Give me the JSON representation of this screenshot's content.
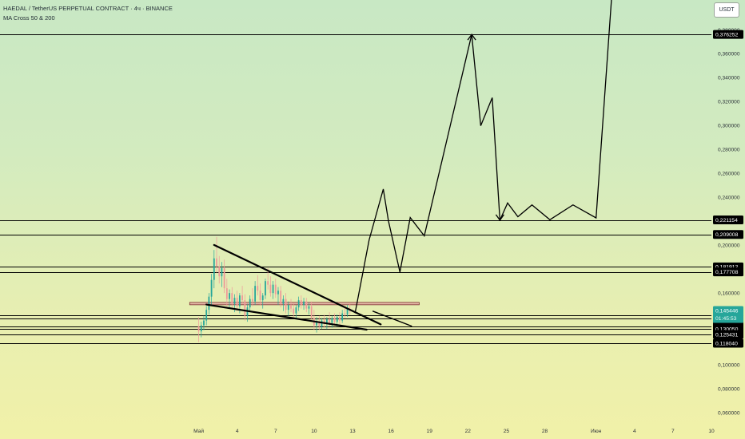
{
  "header": {
    "title": "HAEDAL / TetherUS PERPETUAL CONTRACT · 4ч · BINANCE",
    "indicator": "MA Cross 50 & 200",
    "currency": "USDT"
  },
  "colors": {
    "line": "#000000",
    "candle_up": "#26a69a",
    "candle_down": "#ef9a9a",
    "price_tag_bg": "#000000",
    "last_price_bg": "#26a69a",
    "countdown_bg": "#7fc6b8",
    "red_line": "#7b3030"
  },
  "chart_data": {
    "type": "line",
    "title": "HAEDAL / TetherUS PERPETUAL CONTRACT · 4ч · BINANCE",
    "xlabel": "",
    "ylabel": "",
    "x_unit": "days from 1 May 2025",
    "ylim": [
      0.05,
      0.405
    ],
    "xlim": [
      -15.5,
      40.0
    ],
    "x_ticks": [
      {
        "label": "Май",
        "x": 0
      },
      {
        "label": "4",
        "x": 3
      },
      {
        "label": "7",
        "x": 6
      },
      {
        "label": "10",
        "x": 9
      },
      {
        "label": "13",
        "x": 12
      },
      {
        "label": "16",
        "x": 15
      },
      {
        "label": "19",
        "x": 18
      },
      {
        "label": "22",
        "x": 21
      },
      {
        "label": "25",
        "x": 24
      },
      {
        "label": "28",
        "x": 27
      },
      {
        "label": "Июн",
        "x": 31
      },
      {
        "label": "4",
        "x": 34
      },
      {
        "label": "7",
        "x": 37
      },
      {
        "label": "10",
        "x": 40
      }
    ],
    "y_ticks": [
      0.06,
      0.08,
      0.1,
      0.12,
      0.14,
      0.16,
      0.18,
      0.2,
      0.22,
      0.24,
      0.26,
      0.28,
      0.3,
      0.32,
      0.34,
      0.36,
      0.38
    ],
    "y_tick_labels": [
      "0,060000",
      "0,080000",
      "0,100000",
      "0,120000",
      "0,140000",
      "0,160000",
      "0,180000",
      "0,200000",
      "0,220000",
      "0,240000",
      "0,260000",
      "0,280000",
      "0,300000",
      "0,320000",
      "0,340000",
      "0,360000",
      "0,380000"
    ],
    "levels": [
      {
        "value": 0.376252,
        "label": "0,376252"
      },
      {
        "value": 0.221154,
        "label": "0,221154"
      },
      {
        "value": 0.209008,
        "label": "0,209008"
      },
      {
        "value": 0.181912,
        "label": "0,181912"
      },
      {
        "value": 0.177708,
        "label": "0,177708"
      },
      {
        "value": 0.14113,
        "label": "0,141130"
      },
      {
        "value": 0.138667,
        "label": "0,138667"
      },
      {
        "value": 0.131898,
        "label": "0,131898"
      },
      {
        "value": 0.13005,
        "label": "0,130050"
      },
      {
        "value": 0.125431,
        "label": "0,125431"
      },
      {
        "value": 0.11804,
        "label": "0,118040"
      }
    ],
    "last_price": {
      "value": 0.145446,
      "label": "0,145446",
      "countdown": "01:45:53"
    },
    "red_level": {
      "value": 0.1512,
      "x_start": -0.7,
      "x_end": 17.2
    },
    "trendlines": [
      {
        "name": "upper-wedge",
        "points": [
          [
            1.2,
            0.2002
          ],
          [
            14.2,
            0.1338
          ]
        ]
      },
      {
        "name": "lower-wedge",
        "points": [
          [
            0.6,
            0.1504
          ],
          [
            13.1,
            0.1294
          ]
        ]
      },
      {
        "name": "breakout-upper",
        "points": [
          [
            13.6,
            0.1448
          ],
          [
            16.6,
            0.1324
          ]
        ]
      }
    ],
    "projection": [
      [
        12.2,
        0.1432
      ],
      [
        13.3,
        0.2045
      ],
      [
        14.4,
        0.2469
      ],
      [
        14.8,
        0.2205
      ],
      [
        15.7,
        0.1775
      ],
      [
        16.5,
        0.2231
      ],
      [
        17.6,
        0.2078
      ],
      [
        21.3,
        0.3762
      ],
      [
        22.0,
        0.2999
      ],
      [
        22.9,
        0.3233
      ],
      [
        23.5,
        0.2209
      ],
      [
        24.1,
        0.2353
      ],
      [
        24.9,
        0.2238
      ],
      [
        26.0,
        0.2337
      ],
      [
        27.4,
        0.2213
      ],
      [
        29.2,
        0.2337
      ],
      [
        31.0,
        0.2228
      ],
      [
        32.2,
        0.405
      ]
    ],
    "candles": [
      {
        "x": 0.0,
        "o": 0.132,
        "h": 0.14,
        "l": 0.119,
        "c": 0.128
      },
      {
        "x": 0.2,
        "o": 0.128,
        "h": 0.136,
        "l": 0.123,
        "c": 0.133
      },
      {
        "x": 0.4,
        "o": 0.133,
        "h": 0.141,
        "l": 0.129,
        "c": 0.137
      },
      {
        "x": 0.6,
        "o": 0.137,
        "h": 0.149,
        "l": 0.133,
        "c": 0.146
      },
      {
        "x": 0.8,
        "o": 0.146,
        "h": 0.16,
        "l": 0.142,
        "c": 0.157
      },
      {
        "x": 1.0,
        "o": 0.157,
        "h": 0.176,
        "l": 0.15,
        "c": 0.171
      },
      {
        "x": 1.2,
        "o": 0.171,
        "h": 0.196,
        "l": 0.164,
        "c": 0.189
      },
      {
        "x": 1.4,
        "o": 0.189,
        "h": 0.207,
        "l": 0.177,
        "c": 0.182
      },
      {
        "x": 1.6,
        "o": 0.182,
        "h": 0.191,
        "l": 0.168,
        "c": 0.174
      },
      {
        "x": 1.8,
        "o": 0.174,
        "h": 0.186,
        "l": 0.165,
        "c": 0.181
      },
      {
        "x": 2.0,
        "o": 0.181,
        "h": 0.188,
        "l": 0.16,
        "c": 0.164
      },
      {
        "x": 2.2,
        "o": 0.164,
        "h": 0.172,
        "l": 0.149,
        "c": 0.155
      },
      {
        "x": 2.4,
        "o": 0.155,
        "h": 0.163,
        "l": 0.147,
        "c": 0.16
      },
      {
        "x": 2.6,
        "o": 0.16,
        "h": 0.165,
        "l": 0.148,
        "c": 0.151
      },
      {
        "x": 2.8,
        "o": 0.151,
        "h": 0.159,
        "l": 0.144,
        "c": 0.156
      },
      {
        "x": 3.0,
        "o": 0.156,
        "h": 0.162,
        "l": 0.146,
        "c": 0.149
      },
      {
        "x": 3.2,
        "o": 0.149,
        "h": 0.16,
        "l": 0.143,
        "c": 0.158
      },
      {
        "x": 3.4,
        "o": 0.158,
        "h": 0.166,
        "l": 0.151,
        "c": 0.154
      },
      {
        "x": 3.6,
        "o": 0.154,
        "h": 0.159,
        "l": 0.137,
        "c": 0.141
      },
      {
        "x": 3.8,
        "o": 0.141,
        "h": 0.151,
        "l": 0.136,
        "c": 0.148
      },
      {
        "x": 4.0,
        "o": 0.148,
        "h": 0.158,
        "l": 0.144,
        "c": 0.155
      },
      {
        "x": 4.2,
        "o": 0.155,
        "h": 0.164,
        "l": 0.149,
        "c": 0.153
      },
      {
        "x": 4.4,
        "o": 0.153,
        "h": 0.17,
        "l": 0.15,
        "c": 0.166
      },
      {
        "x": 4.6,
        "o": 0.166,
        "h": 0.175,
        "l": 0.158,
        "c": 0.162
      },
      {
        "x": 4.8,
        "o": 0.162,
        "h": 0.168,
        "l": 0.15,
        "c": 0.154
      },
      {
        "x": 5.0,
        "o": 0.154,
        "h": 0.16,
        "l": 0.147,
        "c": 0.158
      },
      {
        "x": 5.2,
        "o": 0.158,
        "h": 0.172,
        "l": 0.155,
        "c": 0.17
      },
      {
        "x": 5.4,
        "o": 0.17,
        "h": 0.181,
        "l": 0.163,
        "c": 0.167
      },
      {
        "x": 5.6,
        "o": 0.167,
        "h": 0.174,
        "l": 0.157,
        "c": 0.16
      },
      {
        "x": 5.8,
        "o": 0.16,
        "h": 0.17,
        "l": 0.155,
        "c": 0.167
      },
      {
        "x": 6.0,
        "o": 0.167,
        "h": 0.172,
        "l": 0.156,
        "c": 0.159
      },
      {
        "x": 6.2,
        "o": 0.159,
        "h": 0.165,
        "l": 0.15,
        "c": 0.162
      },
      {
        "x": 6.4,
        "o": 0.162,
        "h": 0.166,
        "l": 0.148,
        "c": 0.151
      },
      {
        "x": 6.6,
        "o": 0.151,
        "h": 0.158,
        "l": 0.145,
        "c": 0.155
      },
      {
        "x": 6.8,
        "o": 0.155,
        "h": 0.16,
        "l": 0.143,
        "c": 0.146
      },
      {
        "x": 7.0,
        "o": 0.146,
        "h": 0.153,
        "l": 0.141,
        "c": 0.15
      },
      {
        "x": 7.2,
        "o": 0.15,
        "h": 0.155,
        "l": 0.144,
        "c": 0.147
      },
      {
        "x": 7.4,
        "o": 0.147,
        "h": 0.152,
        "l": 0.14,
        "c": 0.143
      },
      {
        "x": 7.6,
        "o": 0.143,
        "h": 0.15,
        "l": 0.139,
        "c": 0.148
      },
      {
        "x": 7.8,
        "o": 0.148,
        "h": 0.157,
        "l": 0.145,
        "c": 0.154
      },
      {
        "x": 8.0,
        "o": 0.154,
        "h": 0.158,
        "l": 0.147,
        "c": 0.15
      },
      {
        "x": 8.2,
        "o": 0.15,
        "h": 0.156,
        "l": 0.146,
        "c": 0.153
      },
      {
        "x": 8.4,
        "o": 0.153,
        "h": 0.156,
        "l": 0.144,
        "c": 0.147
      },
      {
        "x": 8.6,
        "o": 0.147,
        "h": 0.152,
        "l": 0.142,
        "c": 0.149
      },
      {
        "x": 8.8,
        "o": 0.149,
        "h": 0.153,
        "l": 0.136,
        "c": 0.139
      },
      {
        "x": 9.0,
        "o": 0.139,
        "h": 0.146,
        "l": 0.129,
        "c": 0.133
      },
      {
        "x": 9.2,
        "o": 0.133,
        "h": 0.14,
        "l": 0.127,
        "c": 0.136
      },
      {
        "x": 9.4,
        "o": 0.136,
        "h": 0.141,
        "l": 0.129,
        "c": 0.132
      },
      {
        "x": 9.6,
        "o": 0.132,
        "h": 0.139,
        "l": 0.13,
        "c": 0.137
      },
      {
        "x": 9.8,
        "o": 0.137,
        "h": 0.142,
        "l": 0.131,
        "c": 0.134
      },
      {
        "x": 10.0,
        "o": 0.134,
        "h": 0.14,
        "l": 0.13,
        "c": 0.138
      },
      {
        "x": 10.2,
        "o": 0.138,
        "h": 0.144,
        "l": 0.132,
        "c": 0.135
      },
      {
        "x": 10.4,
        "o": 0.135,
        "h": 0.141,
        "l": 0.131,
        "c": 0.139
      },
      {
        "x": 10.6,
        "o": 0.139,
        "h": 0.143,
        "l": 0.133,
        "c": 0.136
      },
      {
        "x": 10.8,
        "o": 0.136,
        "h": 0.142,
        "l": 0.132,
        "c": 0.14
      },
      {
        "x": 11.0,
        "o": 0.14,
        "h": 0.144,
        "l": 0.134,
        "c": 0.137
      },
      {
        "x": 11.2,
        "o": 0.137,
        "h": 0.146,
        "l": 0.135,
        "c": 0.143
      },
      {
        "x": 11.4,
        "o": 0.143,
        "h": 0.149,
        "l": 0.139,
        "c": 0.142
      },
      {
        "x": 11.6,
        "o": 0.142,
        "h": 0.15,
        "l": 0.14,
        "c": 0.147
      },
      {
        "x": 11.8,
        "o": 0.147,
        "h": 0.152,
        "l": 0.142,
        "c": 0.145
      }
    ]
  }
}
